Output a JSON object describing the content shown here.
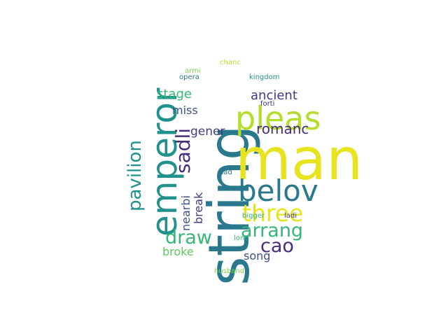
{
  "colors": {
    "background": "#ffffff",
    "yellow": "#e7e41f",
    "lime": "#b4dd2c",
    "green": "#5ec962",
    "teal": "#21918c",
    "blue": "#3b528b",
    "dark_teal": "#2a788e",
    "purple": "#472d7b",
    "violet": "#443a83",
    "light_green": "#7fd34e",
    "aqua": "#35b779"
  },
  "words": {
    "string": "string",
    "man": "man",
    "emperor": "emperor",
    "pleas": "pleas",
    "belov": "belov",
    "three": "three",
    "pavilion": "pavilion",
    "sadli": "sadli",
    "arrang": "arrang",
    "draw": "draw",
    "cao": "cao",
    "stage": "stage",
    "ancient": "ancient",
    "romanc": "romanc",
    "miss": "miss",
    "gener": "gener",
    "nearbi": "nearbi",
    "break": "break",
    "broke": "broke",
    "song": "song",
    "chanc": "chanc",
    "armi": "armi",
    "opera": "opera",
    "kingdom": "kingdom",
    "forti": "forti",
    "sad": "sad",
    "bigger": "bigger",
    "ladi": "ladi",
    "lone": "lone",
    "husband": "husband"
  }
}
